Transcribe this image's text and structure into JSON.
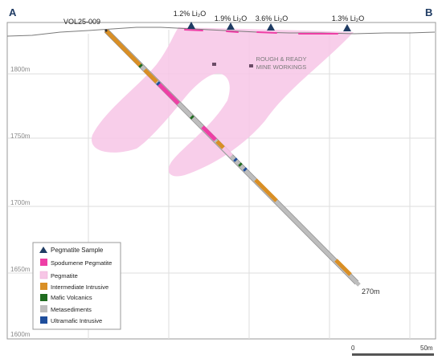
{
  "section_ends": {
    "left": "A",
    "right": "B"
  },
  "drillhole": {
    "name": "VOL25-009",
    "depth_label": "270m"
  },
  "samples": [
    {
      "label": "1.2% Li₂O"
    },
    {
      "label": "1.9% Li₂O"
    },
    {
      "label": "3.6% Li₂O"
    },
    {
      "label": "1.3% Li₂O"
    }
  ],
  "elevation_labels": [
    "1800m",
    "1750m",
    "1700m",
    "1650m",
    "1600m"
  ],
  "annotation": {
    "line1": "ROUGH & READY",
    "line2": "MINE WORKINGS"
  },
  "legend": {
    "items": [
      {
        "label": "Pegmatite Sample",
        "color": "#1f3b63",
        "icon": "triangle-icon"
      },
      {
        "label": "Spodumene Pegmatite",
        "color": "#ee3fa6",
        "icon": "square-swatch"
      },
      {
        "label": "Pegmatite",
        "color": "#f7c6e6",
        "icon": "square-swatch"
      },
      {
        "label": "Intermediate Intrusive",
        "color": "#d98f25",
        "icon": "square-swatch"
      },
      {
        "label": "Mafic Volcanics",
        "color": "#1f6b1f",
        "icon": "square-swatch"
      },
      {
        "label": "Metasediments",
        "color": "#bdbdbd",
        "icon": "square-swatch"
      },
      {
        "label": "Ultramafic Intrusive",
        "color": "#1f4e9c",
        "icon": "square-swatch"
      }
    ]
  },
  "scale_bar": {
    "start": "0",
    "end": "50m"
  },
  "colors": {
    "frame": "#9a9a9a",
    "grid": "#dedede",
    "pegmatite": "#f7c6e6",
    "spodumene": "#ee3fa6",
    "sample": "#1f3b63",
    "label_grey": "#8a8a8a",
    "accent_blue": "#1f3b63"
  }
}
